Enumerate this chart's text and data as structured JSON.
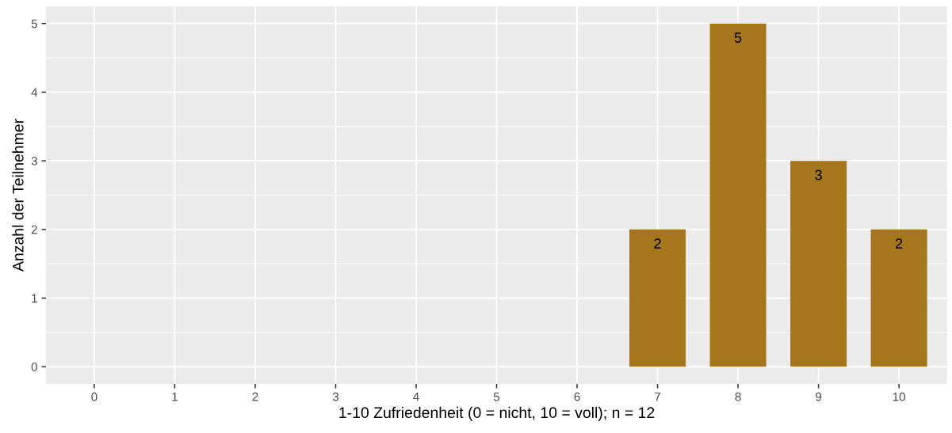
{
  "chart_data": {
    "type": "bar",
    "xlabel": "1-10 Zufriedenheit (0 = nicht, 10 = voll); n = 12",
    "ylabel": "Anzahl der Teilnehmer",
    "x": [
      7,
      8,
      9,
      10
    ],
    "values": [
      2,
      5,
      3,
      2
    ],
    "color": "#a5761c",
    "xlim": [
      -0.6,
      10.6
    ],
    "xticks": [
      0,
      1,
      2,
      3,
      4,
      5,
      6,
      7,
      8,
      9,
      10
    ],
    "ylim": [
      -0.25,
      5.25
    ],
    "yticks": [
      0,
      1,
      2,
      3,
      4,
      5
    ],
    "grid": true,
    "data_labels": true
  }
}
